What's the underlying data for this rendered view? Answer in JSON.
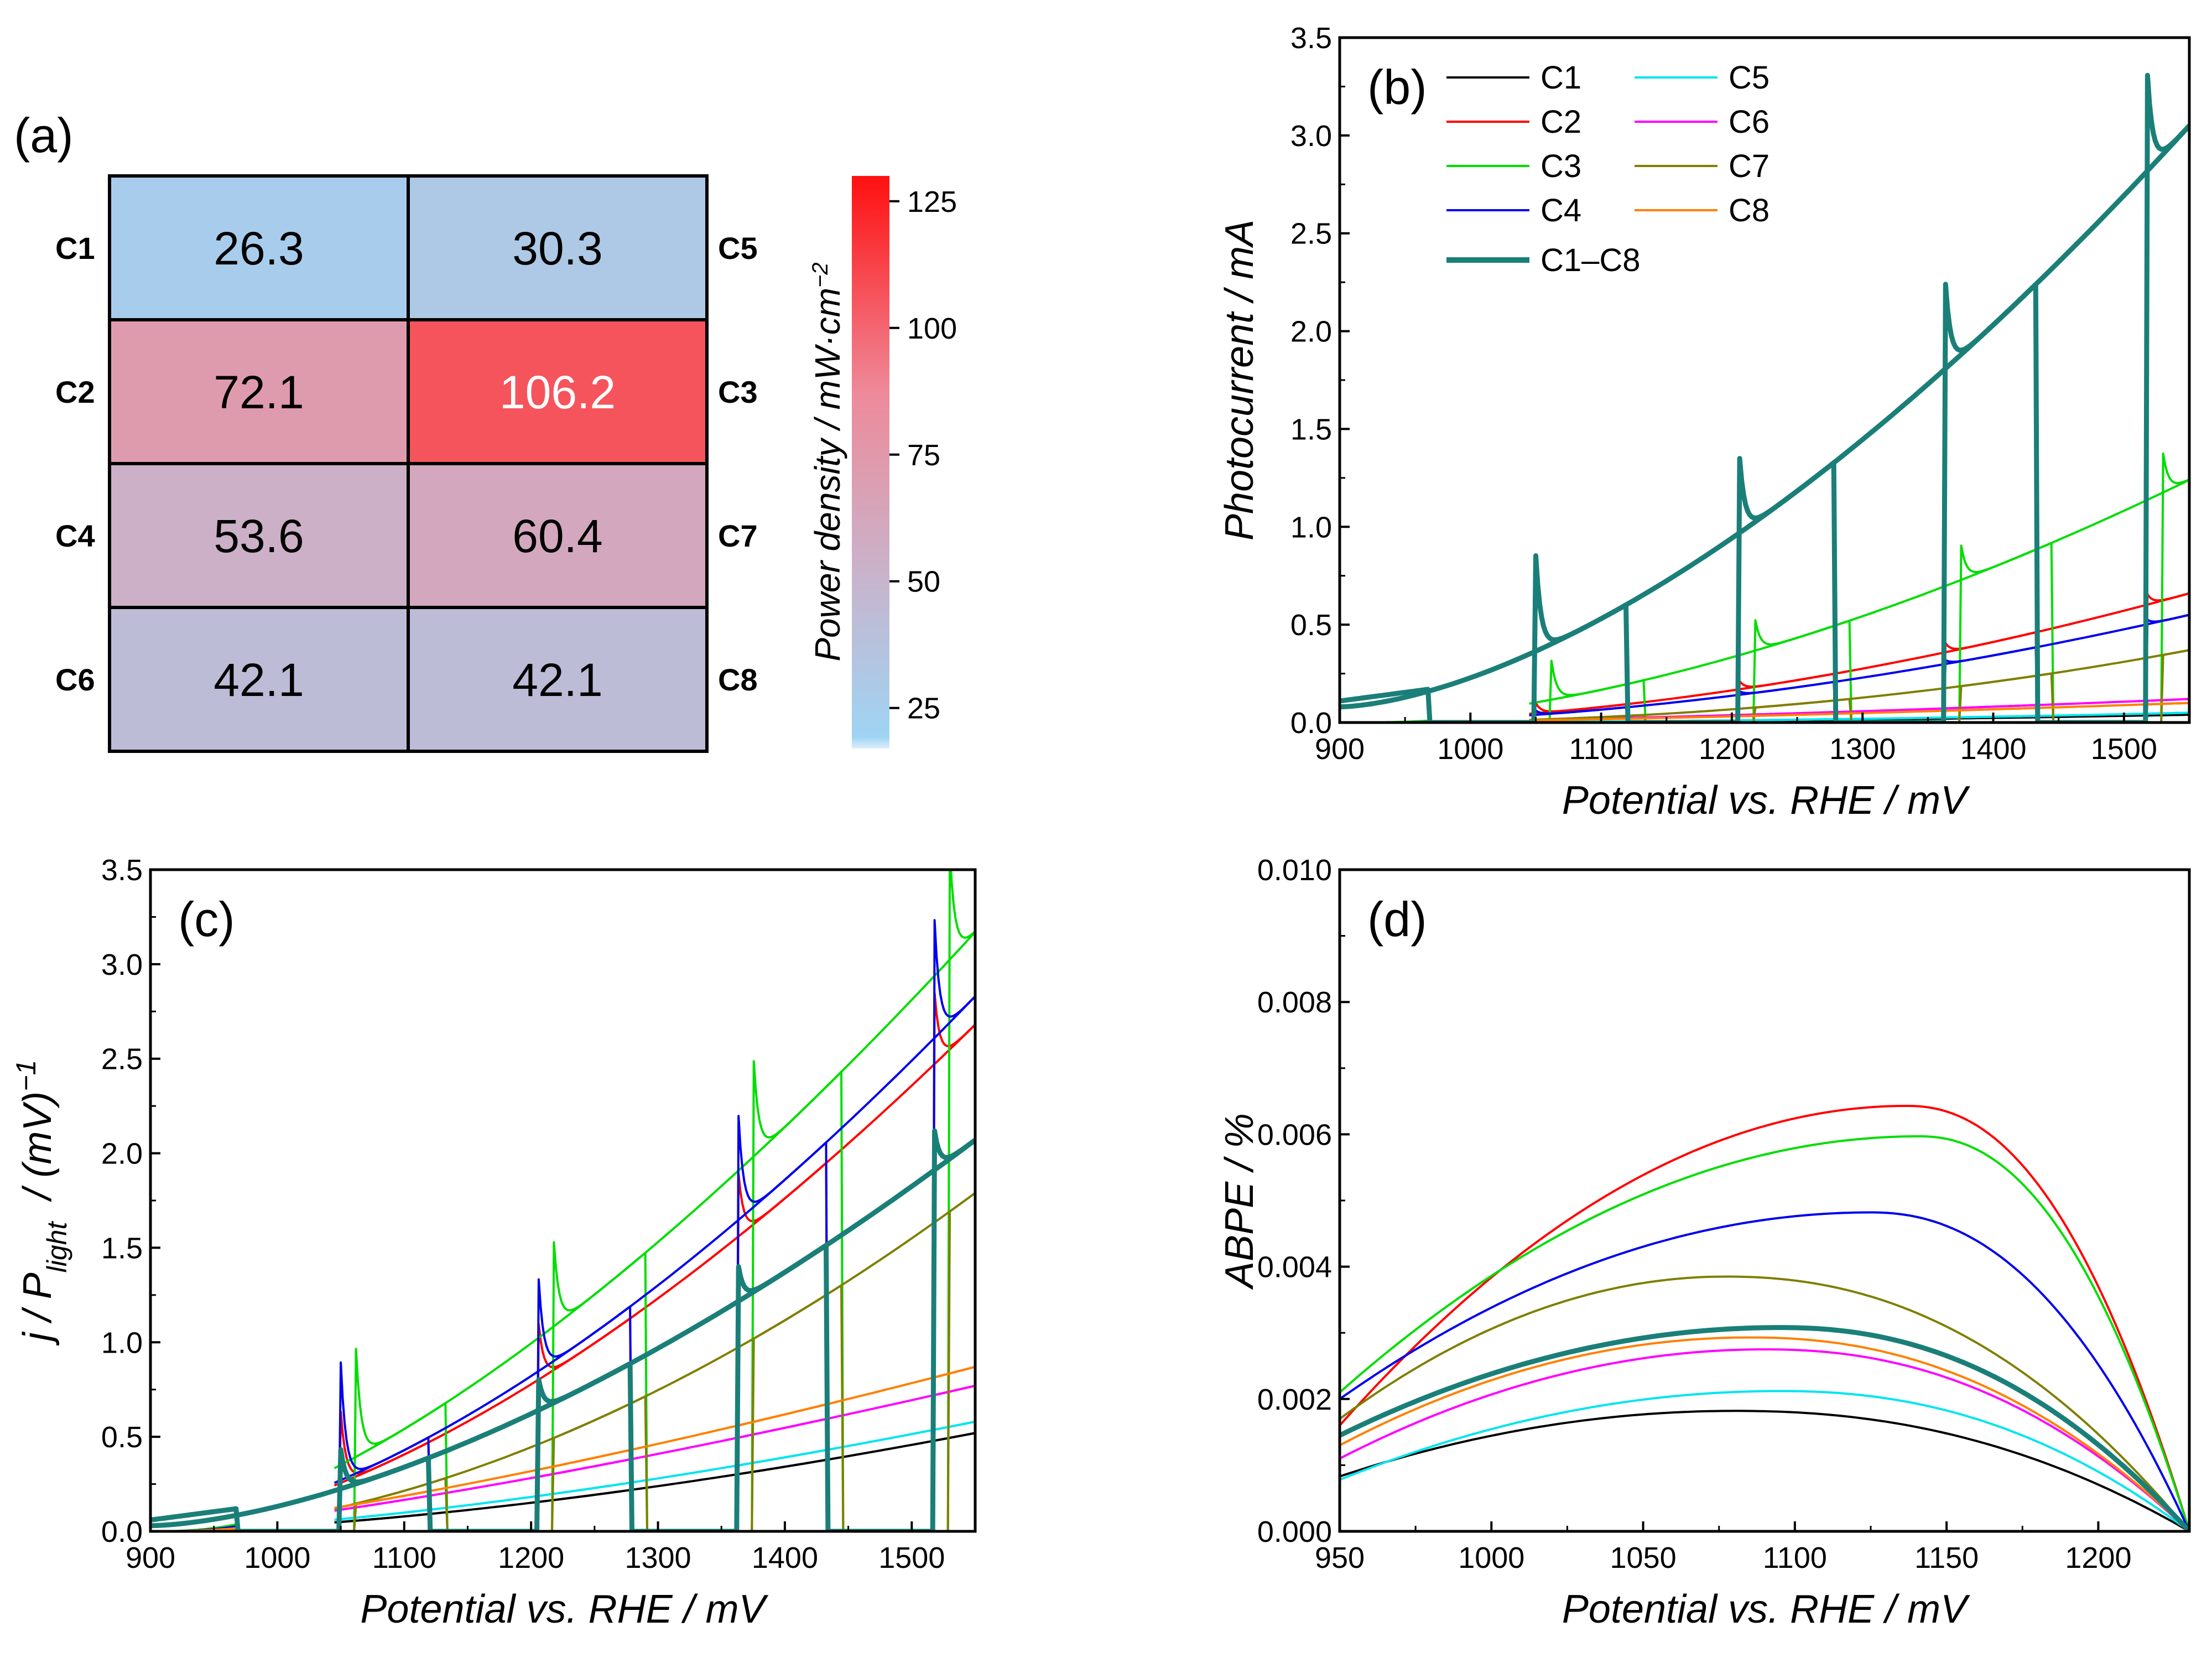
{
  "heatmap": {
    "label": "(a)",
    "colorbar_title": "Power density / mW·cm",
    "colorbar_title_sup": "−2",
    "colorbar_ticks": [
      "25",
      "50",
      "75",
      "100",
      "125"
    ],
    "colorbar_range": [
      17,
      130
    ],
    "colorbar_colors": [
      "#dfeefb",
      "#9fd4f4",
      "#c8b4cc",
      "#ee8a9a",
      "#ff1010"
    ],
    "rows": [
      {
        "left": "C1",
        "right": "C5",
        "values": [
          26.3,
          30.3
        ],
        "labels": [
          "26.3",
          "30.3"
        ]
      },
      {
        "left": "C2",
        "right": "C3",
        "values": [
          72.1,
          106.2
        ],
        "labels": [
          "72.1",
          "106.2"
        ]
      },
      {
        "left": "C4",
        "right": "C7",
        "values": [
          53.6,
          60.4
        ],
        "labels": [
          "53.6",
          "60.4"
        ]
      },
      {
        "left": "C6",
        "right": "C8",
        "values": [
          42.1,
          42.1
        ],
        "labels": [
          "42.1",
          "42.1"
        ]
      }
    ]
  },
  "legend": {
    "entries": [
      {
        "name": "C1",
        "color": "#000000"
      },
      {
        "name": "C2",
        "color": "#ff0000"
      },
      {
        "name": "C3",
        "color": "#00dd00"
      },
      {
        "name": "C4",
        "color": "#0000ee"
      },
      {
        "name": "C1–C8",
        "color": "#1a7f78",
        "bold": true
      },
      {
        "name": "C5",
        "color": "#00e5ee"
      },
      {
        "name": "C6",
        "color": "#ff00ff"
      },
      {
        "name": "C7",
        "color": "#7f7f00"
      },
      {
        "name": "C8",
        "color": "#ff8000"
      }
    ]
  },
  "chart_data": [
    {
      "type": "heatmap",
      "panel": "(a)",
      "rows": [
        "C1",
        "C2",
        "C4",
        "C6"
      ],
      "cols_right": [
        "C5",
        "C3",
        "C7",
        "C8"
      ],
      "values": [
        [
          26.3,
          30.3
        ],
        [
          72.1,
          106.2
        ],
        [
          53.6,
          60.4
        ],
        [
          42.1,
          42.1
        ]
      ],
      "colorbar_label": "Power density / mW·cm−2",
      "colorbar_ticks": [
        25,
        50,
        75,
        100,
        125
      ]
    },
    {
      "type": "line",
      "panel": "(b)",
      "xlabel": "Potential vs. RHE / mV",
      "ylabel": "Photocurrent / mA",
      "xlim": [
        900,
        1550
      ],
      "ylim": [
        0,
        3.5
      ],
      "xticks": [
        "900",
        "1000",
        "1100",
        "1200",
        "1300",
        "1400",
        "1500"
      ],
      "yticks": [
        "0.0",
        "0.5",
        "1.0",
        "1.5",
        "2.0",
        "2.5",
        "3.0",
        "3.5"
      ],
      "chop_on_windows": [
        [
          1050,
          1120
        ],
        [
          1205,
          1278
        ],
        [
          1363,
          1433
        ],
        [
          1518,
          1550
        ]
      ],
      "chop_on_windows_shifted": [
        [
          1062,
          1133
        ],
        [
          1217,
          1290
        ],
        [
          1375,
          1445
        ],
        [
          1530,
          1550
        ]
      ],
      "series": [
        {
          "name": "C1",
          "base": [
            0.0,
            0.04
          ],
          "exp": 2
        },
        {
          "name": "C2",
          "base": [
            0.0,
            0.66
          ],
          "exp": 1.8,
          "spike": 0.2
        },
        {
          "name": "C3",
          "base": [
            0.0,
            1.24
          ],
          "exp": 1.7,
          "spike": 0.4,
          "shift": true
        },
        {
          "name": "C4",
          "base": [
            0.0,
            0.55
          ],
          "exp": 1.8,
          "spike": 0.1
        },
        {
          "name": "C5",
          "base": [
            0.0,
            0.05
          ],
          "exp": 2
        },
        {
          "name": "C6",
          "base": [
            0.0,
            0.12
          ],
          "exp": 1.5
        },
        {
          "name": "C7",
          "base": [
            0.0,
            0.37
          ],
          "exp": 2.2,
          "shift": true
        },
        {
          "name": "C8",
          "base": [
            0.0,
            0.1
          ],
          "exp": 1.5
        },
        {
          "name": "C1–C8",
          "base": [
            0.08,
            3.05
          ],
          "exp": 1.6,
          "spike": 0.4,
          "bold": true
        }
      ]
    },
    {
      "type": "line",
      "panel": "(c)",
      "xlabel": "Potential vs. RHE / mV",
      "ylabel_main": "j / P",
      "ylabel_sub": "light",
      "ylabel_tail": "/ (mV)",
      "ylabel_sup": "−1",
      "xlim": [
        900,
        1550
      ],
      "ylim": [
        0,
        3.5
      ],
      "xticks": [
        "900",
        "1000",
        "1100",
        "1200",
        "1300",
        "1400",
        "1500"
      ],
      "yticks": [
        "0.0",
        "0.5",
        "1.0",
        "1.5",
        "2.0",
        "2.5",
        "3.0",
        "3.5"
      ],
      "series": [
        {
          "name": "C1",
          "base": [
            0.0,
            0.52
          ],
          "exp": 1.6
        },
        {
          "name": "C2",
          "base": [
            0.0,
            2.68
          ],
          "exp": 1.6,
          "spike": 0.35
        },
        {
          "name": "C3",
          "base": [
            0.0,
            3.17
          ],
          "exp": 1.5,
          "spike": 0.45,
          "shift": true
        },
        {
          "name": "C4",
          "base": [
            0.0,
            2.83
          ],
          "exp": 1.6,
          "spike": 0.55
        },
        {
          "name": "C5",
          "base": [
            0.0,
            0.58
          ],
          "exp": 1.5
        },
        {
          "name": "C6",
          "base": [
            0.0,
            0.77
          ],
          "exp": 1.3
        },
        {
          "name": "C7",
          "base": [
            0.0,
            1.79
          ],
          "exp": 1.8,
          "shift": true
        },
        {
          "name": "C8",
          "base": [
            0.0,
            0.87
          ],
          "exp": 1.3
        },
        {
          "name": "C1–C8",
          "base": [
            0.03,
            2.07
          ],
          "exp": 1.6,
          "spike": 0.25,
          "bold": true
        }
      ]
    },
    {
      "type": "line",
      "panel": "(d)",
      "xlabel": "Potential vs. RHE / mV",
      "ylabel": "ABPE / %",
      "xlim": [
        950,
        1230
      ],
      "ylim": [
        0,
        0.01
      ],
      "xticks": [
        "950",
        "1000",
        "1050",
        "1100",
        "1150",
        "1200"
      ],
      "yticks": [
        "0.000",
        "0.002",
        "0.004",
        "0.006",
        "0.008",
        "0.010"
      ],
      "series": [
        {
          "name": "C1",
          "start": 0.00083,
          "peak_x": 1080,
          "peak_y": 0.00182
        },
        {
          "name": "C2",
          "start": 0.0016,
          "peak_x": 1137,
          "peak_y": 0.00643
        },
        {
          "name": "C3",
          "start": 0.0021,
          "peak_x": 1141,
          "peak_y": 0.00597
        },
        {
          "name": "C4",
          "start": 0.002,
          "peak_x": 1125,
          "peak_y": 0.00482
        },
        {
          "name": "C5",
          "start": 0.00078,
          "peak_x": 1095,
          "peak_y": 0.00212
        },
        {
          "name": "C6",
          "start": 0.0011,
          "peak_x": 1090,
          "peak_y": 0.00275
        },
        {
          "name": "C7",
          "start": 0.0017,
          "peak_x": 1077,
          "peak_y": 0.00385
        },
        {
          "name": "C8",
          "start": 0.0013,
          "peak_x": 1085,
          "peak_y": 0.00293
        },
        {
          "name": "C1–C8",
          "start": 0.00145,
          "peak_x": 1095,
          "peak_y": 0.00308,
          "bold": true
        }
      ]
    }
  ]
}
